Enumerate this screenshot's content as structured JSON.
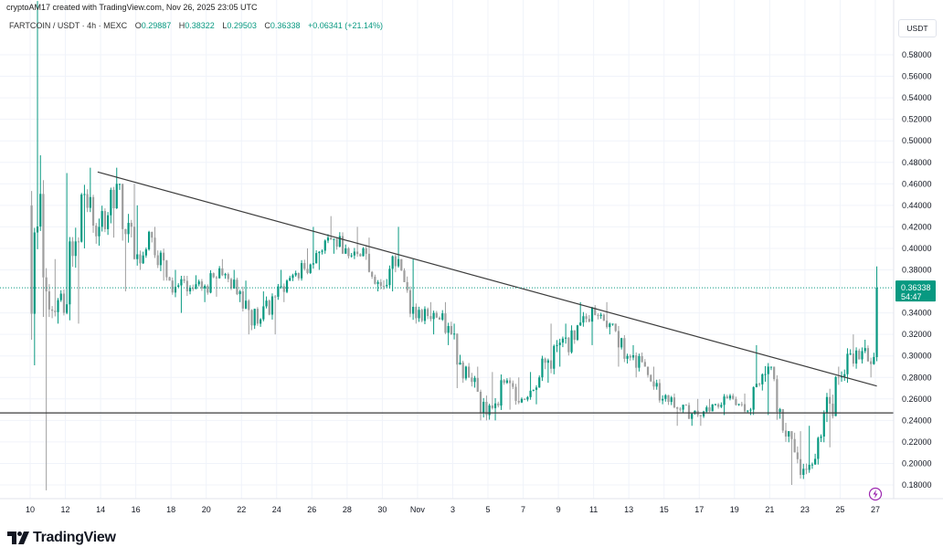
{
  "header": {
    "credit": "cryptoAM17 created with TradingView.com, Nov 26, 2025 23:05 UTC",
    "symbol": "FARTCOIN / USDT · 4h · MEXC",
    "ohlc": {
      "o_label": "O",
      "o": "0.29887",
      "h_label": "H",
      "h": "0.38322",
      "l_label": "L",
      "l": "0.29503",
      "c_label": "C",
      "c": "0.36338",
      "change": "+0.06341 (+21.14%)"
    }
  },
  "price_axis": {
    "currency_button": "USDT",
    "ticks": [
      "0.58000",
      "0.56000",
      "0.54000",
      "0.52000",
      "0.50000",
      "0.48000",
      "0.46000",
      "0.44000",
      "0.42000",
      "0.40000",
      "0.38000",
      "0.34000",
      "0.32000",
      "0.30000",
      "0.28000",
      "0.26000",
      "0.24000",
      "0.22000",
      "0.20000",
      "0.18000"
    ],
    "last_price": "0.36338",
    "countdown": "54:47"
  },
  "time_axis": {
    "ticks": [
      "10",
      "12",
      "14",
      "16",
      "18",
      "20",
      "22",
      "24",
      "26",
      "28",
      "30",
      "Nov",
      "3",
      "5",
      "7",
      "9",
      "11",
      "13",
      "15",
      "17",
      "19",
      "21",
      "23",
      "25",
      "27"
    ]
  },
  "colors": {
    "up": "#089981",
    "down": "#9e9e9e",
    "accent": "#089981",
    "line": "#3c3c3c",
    "lightning": "#9c27b0"
  },
  "icons": {
    "lightning": "lightning-icon",
    "logo": "tradingview-logo"
  },
  "logo_text": "TradingView",
  "chart_data": {
    "type": "candlestick",
    "interval": "4h",
    "ylim": [
      0.17,
      0.63
    ],
    "grid": true,
    "days_start": "2025-10-10",
    "daily_ohlc": [
      [
        0.44,
        0.63,
        0.175,
        0.36
      ],
      [
        0.36,
        0.39,
        0.33,
        0.34
      ],
      [
        0.34,
        0.47,
        0.33,
        0.45
      ],
      [
        0.45,
        0.475,
        0.4,
        0.42
      ],
      [
        0.42,
        0.475,
        0.41,
        0.46
      ],
      [
        0.46,
        0.46,
        0.36,
        0.39
      ],
      [
        0.39,
        0.44,
        0.38,
        0.41
      ],
      [
        0.41,
        0.42,
        0.37,
        0.37
      ],
      [
        0.37,
        0.38,
        0.34,
        0.36
      ],
      [
        0.36,
        0.375,
        0.35,
        0.365
      ],
      [
        0.365,
        0.39,
        0.355,
        0.375
      ],
      [
        0.375,
        0.38,
        0.35,
        0.36
      ],
      [
        0.36,
        0.37,
        0.32,
        0.33
      ],
      [
        0.33,
        0.36,
        0.32,
        0.355
      ],
      [
        0.355,
        0.38,
        0.35,
        0.375
      ],
      [
        0.375,
        0.4,
        0.37,
        0.385
      ],
      [
        0.385,
        0.42,
        0.38,
        0.41
      ],
      [
        0.41,
        0.43,
        0.395,
        0.4
      ],
      [
        0.4,
        0.42,
        0.39,
        0.4
      ],
      [
        0.4,
        0.41,
        0.36,
        0.365
      ],
      [
        0.365,
        0.42,
        0.36,
        0.39
      ],
      [
        0.39,
        0.39,
        0.33,
        0.335
      ],
      [
        0.335,
        0.35,
        0.32,
        0.34
      ],
      [
        0.34,
        0.35,
        0.31,
        0.32
      ],
      [
        0.32,
        0.33,
        0.27,
        0.28
      ],
      [
        0.28,
        0.29,
        0.24,
        0.245
      ],
      [
        0.245,
        0.285,
        0.24,
        0.275
      ],
      [
        0.275,
        0.28,
        0.25,
        0.26
      ],
      [
        0.26,
        0.285,
        0.255,
        0.28
      ],
      [
        0.28,
        0.33,
        0.275,
        0.31
      ],
      [
        0.31,
        0.33,
        0.29,
        0.315
      ],
      [
        0.315,
        0.35,
        0.31,
        0.345
      ],
      [
        0.345,
        0.35,
        0.32,
        0.33
      ],
      [
        0.33,
        0.33,
        0.29,
        0.3
      ],
      [
        0.3,
        0.31,
        0.28,
        0.29
      ],
      [
        0.29,
        0.29,
        0.255,
        0.26
      ],
      [
        0.26,
        0.265,
        0.235,
        0.25
      ],
      [
        0.25,
        0.26,
        0.235,
        0.245
      ],
      [
        0.245,
        0.26,
        0.235,
        0.255
      ],
      [
        0.255,
        0.265,
        0.245,
        0.26
      ],
      [
        0.26,
        0.265,
        0.245,
        0.25
      ],
      [
        0.25,
        0.31,
        0.245,
        0.29
      ],
      [
        0.29,
        0.29,
        0.22,
        0.225
      ],
      [
        0.225,
        0.23,
        0.18,
        0.195
      ],
      [
        0.195,
        0.235,
        0.19,
        0.225
      ],
      [
        0.225,
        0.29,
        0.215,
        0.28
      ],
      [
        0.28,
        0.32,
        0.275,
        0.305
      ],
      [
        0.305,
        0.315,
        0.28,
        0.299
      ]
    ],
    "last_candle": [
      0.29887,
      0.38322,
      0.29503,
      0.36338
    ],
    "trendline": {
      "from": {
        "date": "2025-10-13T20:00",
        "price": 0.471
      },
      "to": {
        "date": "2025-11-27T02:00",
        "price": 0.272
      }
    },
    "support_level": 0.247
  }
}
